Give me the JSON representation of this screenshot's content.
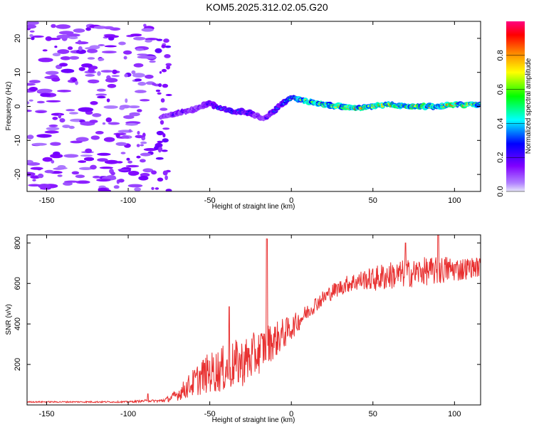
{
  "title": "KOM5.2025.312.02.05.G20",
  "chart_data": [
    {
      "type": "heatmap",
      "name": "spectrogram",
      "xlabel": "Height of straight line (km)",
      "ylabel": "Frequency (Hz)",
      "xlim": [
        -162,
        116
      ],
      "ylim": [
        -25,
        25
      ],
      "xticks": [
        -150,
        -100,
        -50,
        0,
        50,
        100
      ],
      "yticks": [
        -20,
        -10,
        0,
        10,
        20
      ],
      "colorbar": {
        "label": "Normalized spectral amplitude",
        "range": [
          0,
          1
        ],
        "ticks": [
          "0.0",
          "0.2",
          "0.4",
          "0.6",
          "0.8"
        ],
        "colors": [
          "#e6e6fa",
          "#8000ff",
          "#0000ff",
          "#00ffff",
          "#00ff00",
          "#ffff00",
          "#ff8000",
          "#ff0000",
          "#ff0080"
        ]
      },
      "ridge": {
        "heights": [
          -80,
          -75,
          -70,
          -65,
          -60,
          -55,
          -50,
          -45,
          -40,
          -35,
          -30,
          -25,
          -20,
          -17,
          -15,
          -10,
          -5,
          0,
          5,
          10,
          20,
          30,
          40,
          50,
          60,
          70,
          80,
          90,
          100,
          110,
          116
        ],
        "frequency": [
          -3,
          -2.5,
          -2,
          -1.5,
          -1,
          0,
          1,
          -0.5,
          -1,
          -1.5,
          -1.5,
          -2,
          -3,
          -4,
          -3,
          -1,
          1,
          2.5,
          2,
          1.5,
          0.5,
          0,
          -0.5,
          0,
          0.5,
          0,
          0,
          0,
          0.5,
          0.5,
          0.5
        ],
        "amplitude": [
          0.15,
          0.15,
          0.25,
          0.2,
          0.2,
          0.2,
          0.3,
          0.35,
          0.35,
          0.35,
          0.3,
          0.3,
          0.2,
          0.15,
          0.25,
          0.3,
          0.4,
          0.5,
          0.65,
          0.75,
          0.7,
          0.75,
          0.8,
          0.75,
          0.8,
          0.8,
          0.8,
          0.75,
          0.8,
          0.8,
          0.75
        ]
      },
      "noise_region_km": [
        -162,
        -85
      ],
      "noise_amplitude": 0.05
    },
    {
      "type": "line",
      "name": "snr",
      "xlabel": "Height of straight line (km)",
      "ylabel": "SNR (v/v)",
      "xlim": [
        -162,
        116
      ],
      "ylim": [
        0,
        840
      ],
      "xticks": [
        -150,
        -100,
        -50,
        0,
        50,
        100
      ],
      "yticks": [
        200,
        400,
        600,
        800
      ],
      "color": "#e83030",
      "envelope_x": [
        -162,
        -100,
        -90,
        -85,
        -80,
        -75,
        -70,
        -65,
        -60,
        -55,
        -50,
        -45,
        -40,
        -35,
        -30,
        -25,
        -20,
        -15,
        -10,
        -5,
        0,
        5,
        10,
        15,
        20,
        25,
        30,
        35,
        40,
        45,
        50,
        55,
        60,
        65,
        70,
        75,
        80,
        85,
        90,
        95,
        100,
        105,
        110,
        116
      ],
      "envelope_y": [
        15,
        15,
        20,
        20,
        20,
        30,
        50,
        80,
        110,
        140,
        160,
        170,
        180,
        200,
        210,
        230,
        260,
        300,
        320,
        350,
        380,
        420,
        460,
        500,
        530,
        560,
        580,
        600,
        610,
        620,
        620,
        630,
        640,
        640,
        650,
        650,
        660,
        660,
        660,
        670,
        670,
        670,
        680,
        680
      ],
      "noise_amplitude_y": [
        3,
        4,
        6,
        6,
        8,
        15,
        30,
        50,
        70,
        90,
        100,
        110,
        120,
        120,
        120,
        120,
        110,
        100,
        90,
        80,
        60,
        50,
        40,
        40,
        40,
        40,
        40,
        45,
        50,
        50,
        60,
        70,
        70,
        70,
        70,
        70,
        70,
        70,
        70,
        70,
        60,
        60,
        50,
        50
      ],
      "spikes": [
        {
          "x": -88,
          "y": 55
        },
        {
          "x": -38,
          "y": 485
        },
        {
          "x": -15,
          "y": 820
        },
        {
          "x": 70,
          "y": 800
        },
        {
          "x": 90,
          "y": 840
        }
      ]
    }
  ]
}
